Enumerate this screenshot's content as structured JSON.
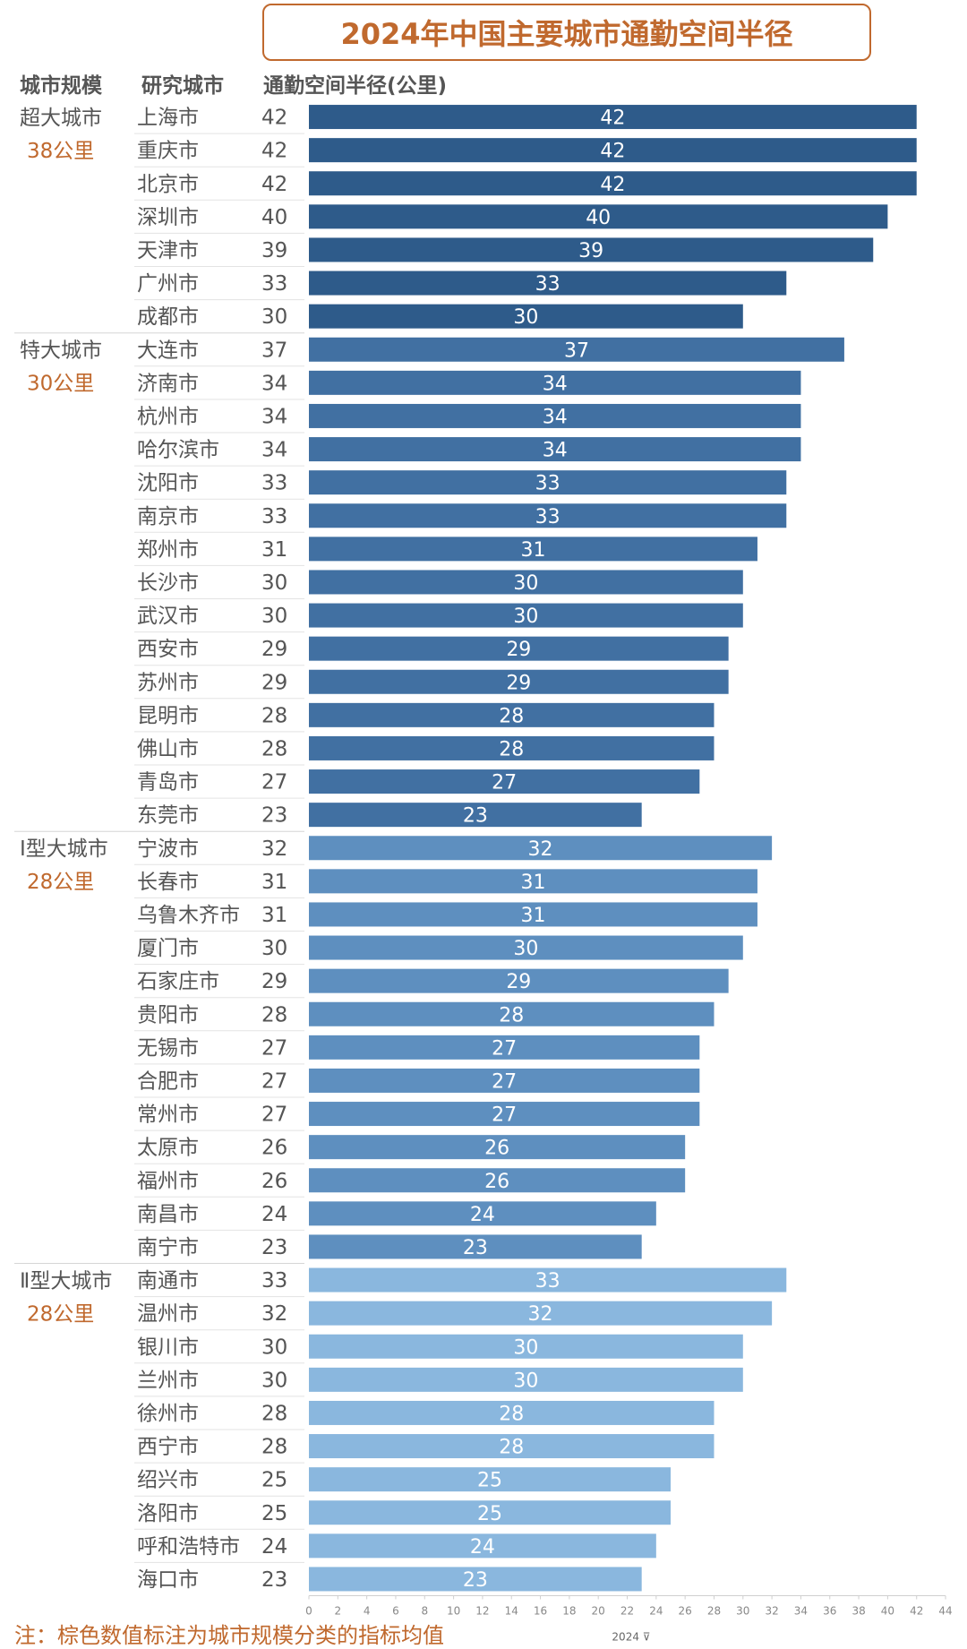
{
  "chart_data": {
    "type": "bar",
    "orientation": "horizontal",
    "title": "2024年中国主要城市通勤空间半径",
    "column_headers": {
      "category": "城市规模",
      "city": "研究城市",
      "value": "通勤空间半径(公里)"
    },
    "xlabel": "2024 ⊽",
    "x_ticks": [
      "0",
      "2",
      "4",
      "6",
      "8",
      "10",
      "12",
      "14",
      "16",
      "18",
      "20",
      "22",
      "24",
      "26",
      "28",
      "30",
      "32",
      "34",
      "36",
      "38",
      "40",
      "42",
      "44"
    ],
    "xlim": [
      0,
      44
    ],
    "note": "注：棕色数值标注为城市规模分类的指标均值",
    "groups": [
      {
        "name": "超大城市",
        "mean_label": "38公里",
        "color": "#2e5b8a",
        "cities": [
          {
            "name": "上海市",
            "value": 42
          },
          {
            "name": "重庆市",
            "value": 42
          },
          {
            "name": "北京市",
            "value": 42
          },
          {
            "name": "深圳市",
            "value": 40
          },
          {
            "name": "天津市",
            "value": 39
          },
          {
            "name": "广州市",
            "value": 33
          },
          {
            "name": "成都市",
            "value": 30
          }
        ]
      },
      {
        "name": "特大城市",
        "mean_label": "30公里",
        "color": "#4170a2",
        "cities": [
          {
            "name": "大连市",
            "value": 37
          },
          {
            "name": "济南市",
            "value": 34
          },
          {
            "name": "杭州市",
            "value": 34
          },
          {
            "name": "哈尔滨市",
            "value": 34
          },
          {
            "name": "沈阳市",
            "value": 33
          },
          {
            "name": "南京市",
            "value": 33
          },
          {
            "name": "郑州市",
            "value": 31
          },
          {
            "name": "长沙市",
            "value": 30
          },
          {
            "name": "武汉市",
            "value": 30
          },
          {
            "name": "西安市",
            "value": 29
          },
          {
            "name": "苏州市",
            "value": 29
          },
          {
            "name": "昆明市",
            "value": 28
          },
          {
            "name": "佛山市",
            "value": 28
          },
          {
            "name": "青岛市",
            "value": 27
          },
          {
            "name": "东莞市",
            "value": 23
          }
        ]
      },
      {
        "name": "Ⅰ型大城市",
        "mean_label": "28公里",
        "color": "#5e8fbf",
        "cities": [
          {
            "name": "宁波市",
            "value": 32
          },
          {
            "name": "长春市",
            "value": 31
          },
          {
            "name": "乌鲁木齐市",
            "value": 31
          },
          {
            "name": "厦门市",
            "value": 30
          },
          {
            "name": "石家庄市",
            "value": 29
          },
          {
            "name": "贵阳市",
            "value": 28
          },
          {
            "name": "无锡市",
            "value": 27
          },
          {
            "name": "合肥市",
            "value": 27
          },
          {
            "name": "常州市",
            "value": 27
          },
          {
            "name": "太原市",
            "value": 26
          },
          {
            "name": "福州市",
            "value": 26
          },
          {
            "name": "南昌市",
            "value": 24
          },
          {
            "name": "南宁市",
            "value": 23
          }
        ]
      },
      {
        "name": "Ⅱ型大城市",
        "mean_label": "28公里",
        "color": "#8ab7de",
        "cities": [
          {
            "name": "南通市",
            "value": 33
          },
          {
            "name": "温州市",
            "value": 32
          },
          {
            "name": "银川市",
            "value": 30
          },
          {
            "name": "兰州市",
            "value": 30
          },
          {
            "name": "徐州市",
            "value": 28
          },
          {
            "name": "西宁市",
            "value": 28
          },
          {
            "name": "绍兴市",
            "value": 25
          },
          {
            "name": "洛阳市",
            "value": 25
          },
          {
            "name": "呼和浩特市",
            "value": 24
          },
          {
            "name": "海口市",
            "value": 23
          }
        ]
      }
    ]
  },
  "colors": {
    "accent": "#c0692e",
    "text": "#555555",
    "gridline": "#e6e6e6"
  }
}
